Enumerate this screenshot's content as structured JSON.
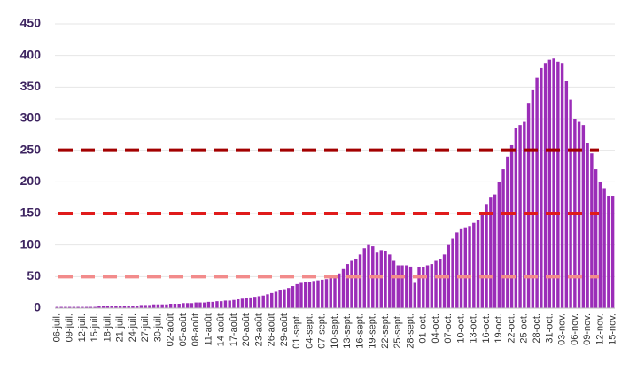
{
  "chart_data": {
    "type": "bar",
    "categories": [
      "06-juil.",
      null,
      null,
      "09-juil.",
      null,
      null,
      "12-juil.",
      null,
      null,
      "15-juil.",
      null,
      null,
      "18-juil.",
      null,
      null,
      "21-juil.",
      null,
      null,
      "24-juil.",
      null,
      null,
      "27-juil.",
      null,
      null,
      "30-juil.",
      null,
      null,
      "02-août",
      null,
      null,
      "05-août",
      null,
      null,
      "08-août",
      null,
      null,
      "11-août",
      null,
      null,
      "14-août",
      null,
      null,
      "17-août",
      null,
      null,
      "20-août",
      null,
      null,
      "23-août",
      null,
      null,
      "26-août",
      null,
      null,
      "29-août",
      null,
      null,
      "01-sept.",
      null,
      null,
      "04-sept.",
      null,
      null,
      "07-sept.",
      null,
      null,
      "10-sept.",
      null,
      null,
      "13-sept.",
      null,
      null,
      "16-sept.",
      null,
      null,
      "19-sept.",
      null,
      null,
      "22-sept.",
      null,
      null,
      "25-sept.",
      null,
      null,
      "28-sept.",
      null,
      null,
      "01-oct.",
      null,
      null,
      "04-oct.",
      null,
      null,
      "07-oct.",
      null,
      null,
      "10-oct.",
      null,
      null,
      "13-oct.",
      null,
      null,
      "16-oct.",
      null,
      null,
      "19-oct.",
      null,
      null,
      "22-oct.",
      null,
      null,
      "25-oct.",
      null,
      null,
      "28-oct.",
      null,
      null,
      "31-oct.",
      null,
      null,
      "03-nov.",
      null,
      null,
      "06-nov.",
      null,
      null,
      "09-nov.",
      null,
      null,
      "12-nov.",
      null,
      null,
      "15-nov."
    ],
    "values": [
      2,
      2,
      2,
      2,
      2,
      2,
      2,
      2,
      2,
      2,
      3,
      3,
      3,
      3,
      3,
      3,
      3,
      4,
      4,
      4,
      5,
      5,
      5,
      6,
      6,
      6,
      6,
      7,
      7,
      7,
      8,
      8,
      8,
      9,
      9,
      9,
      10,
      10,
      11,
      11,
      12,
      12,
      13,
      14,
      15,
      16,
      17,
      18,
      19,
      20,
      22,
      24,
      26,
      28,
      30,
      32,
      35,
      38,
      40,
      42,
      42,
      43,
      44,
      45,
      46,
      48,
      50,
      55,
      62,
      70,
      75,
      78,
      85,
      95,
      100,
      98,
      88,
      92,
      90,
      85,
      75,
      68,
      68,
      68,
      66,
      40,
      65,
      65,
      68,
      70,
      75,
      78,
      85,
      100,
      110,
      120,
      125,
      128,
      130,
      135,
      140,
      150,
      165,
      175,
      180,
      200,
      220,
      240,
      258,
      285,
      290,
      295,
      325,
      345,
      365,
      380,
      388,
      393,
      395,
      390,
      388,
      360,
      330,
      300,
      295,
      290,
      262,
      245,
      220,
      200,
      190,
      178,
      178
    ],
    "color": "#9b2db8",
    "ylim": [
      0,
      450
    ],
    "yticks": [
      0,
      50,
      100,
      150,
      200,
      250,
      300,
      350,
      400,
      450
    ],
    "grid": true,
    "reference_lines": [
      {
        "value": 250,
        "color": "#a30000"
      },
      {
        "value": 150,
        "color": "#e01b1b"
      },
      {
        "value": 50,
        "color": "#f28b8b"
      }
    ]
  }
}
